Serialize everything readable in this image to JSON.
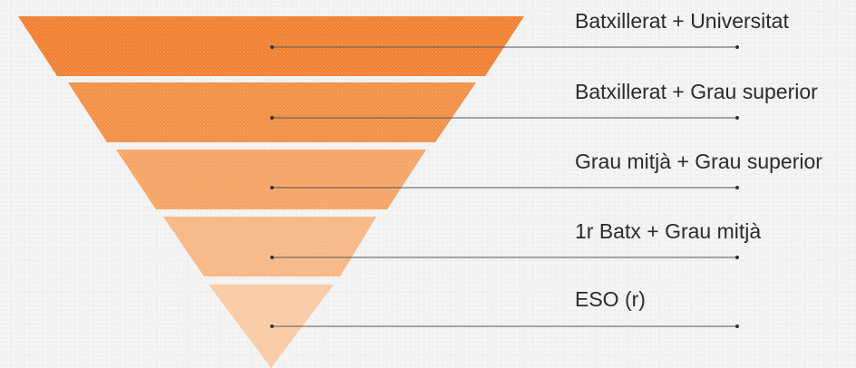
{
  "funnel": {
    "levels": [
      {
        "label": "Batxillerat + Universitat",
        "color": "#f08030"
      },
      {
        "label": "Batxillerat + Grau superior",
        "color": "#f28f43"
      },
      {
        "label": "Grau mitjà + Grau superior",
        "color": "#f5a465"
      },
      {
        "label": "1r Batx + Grau mitjà",
        "color": "#f7b683"
      },
      {
        "label": "ESO (r)",
        "color": "#f9caa3"
      }
    ],
    "line_color": "#555555"
  }
}
